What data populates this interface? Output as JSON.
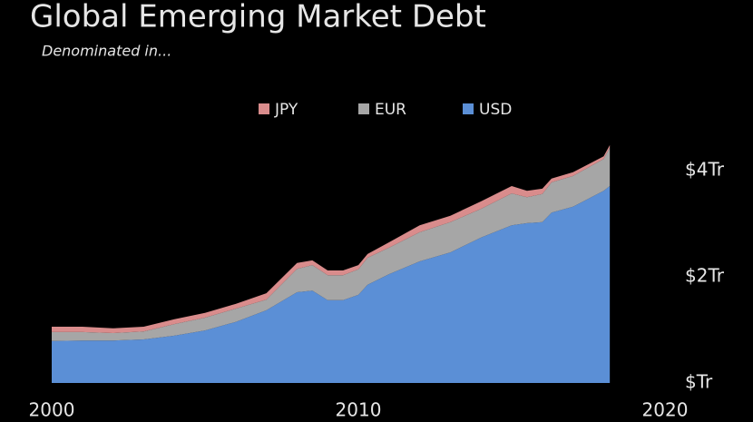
{
  "chart_data": {
    "type": "stacked_area",
    "title": "Global Emerging Market Debt",
    "subtitle": "Denominated in...",
    "x": [
      2000,
      2001,
      2002,
      2003,
      2004,
      2005,
      2006,
      2007,
      2008,
      2008.5,
      2009,
      2009.5,
      2010,
      2010.3,
      2011,
      2012,
      2013,
      2014,
      2015,
      2015.5,
      2016,
      2016.3,
      2017,
      2018,
      2018.2
    ],
    "series": [
      {
        "name": "USD",
        "color": "#5b8fd6",
        "values": [
          0.79,
          0.8,
          0.8,
          0.82,
          0.89,
          0.99,
          1.15,
          1.37,
          1.71,
          1.74,
          1.56,
          1.56,
          1.66,
          1.85,
          2.05,
          2.29,
          2.46,
          2.74,
          2.97,
          3.01,
          3.03,
          3.21,
          3.32,
          3.62,
          3.71
        ]
      },
      {
        "name": "EUR",
        "color": "#a6a6a6",
        "values": [
          0.17,
          0.16,
          0.14,
          0.15,
          0.22,
          0.24,
          0.25,
          0.2,
          0.44,
          0.48,
          0.47,
          0.47,
          0.48,
          0.51,
          0.5,
          0.55,
          0.57,
          0.54,
          0.6,
          0.49,
          0.53,
          0.57,
          0.58,
          0.6,
          0.72
        ]
      },
      {
        "name": "JPY",
        "color": "#d98c8c",
        "values": [
          0.1,
          0.1,
          0.09,
          0.09,
          0.09,
          0.09,
          0.09,
          0.12,
          0.11,
          0.09,
          0.09,
          0.09,
          0.08,
          0.07,
          0.1,
          0.13,
          0.12,
          0.14,
          0.14,
          0.12,
          0.1,
          0.07,
          0.07,
          0.05,
          0.05
        ]
      }
    ],
    "xlim": [
      2000,
      2020
    ],
    "xticks": [
      2000,
      2010,
      2020
    ],
    "ylim": [
      0,
      4.5
    ],
    "yticks": [
      {
        "value": 0,
        "label": "$Tr"
      },
      {
        "value": 2,
        "label": "$2Tr"
      },
      {
        "value": 4,
        "label": "$4Tr"
      }
    ],
    "legend": "top"
  }
}
